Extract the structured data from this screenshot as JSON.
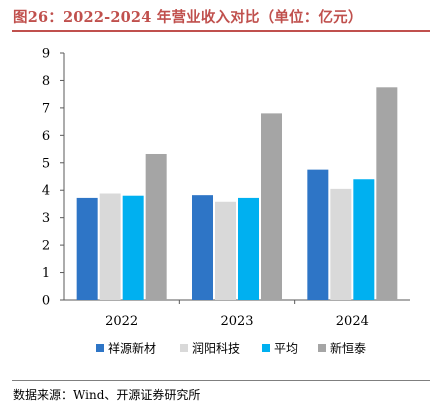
{
  "title": "图26：2022-2024 年营业收入对比（单位：亿元）",
  "source": "数据来源：Wind、开源证券研究所",
  "chart_data": {
    "type": "bar",
    "categories": [
      "2022",
      "2023",
      "2024"
    ],
    "series": [
      {
        "name": "祥源新材",
        "color": "#2e75c6",
        "values": [
          3.72,
          3.82,
          4.75
        ]
      },
      {
        "name": "润阳科技",
        "color": "#d9d9d9",
        "values": [
          3.88,
          3.58,
          4.05
        ]
      },
      {
        "name": "平均",
        "color": "#00b0f0",
        "values": [
          3.8,
          3.72,
          4.4
        ]
      },
      {
        "name": "新恒泰",
        "color": "#a5a5a5",
        "values": [
          5.32,
          6.8,
          7.75
        ]
      }
    ],
    "ylim": [
      0,
      9
    ],
    "yticks": [
      0,
      1,
      2,
      3,
      4,
      5,
      6,
      7,
      8,
      9
    ],
    "grid": false,
    "legend": "bottom"
  }
}
